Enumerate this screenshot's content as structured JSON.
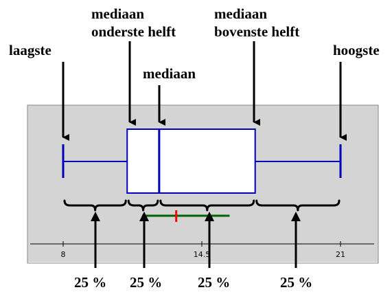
{
  "labels": {
    "lowest": "laagste",
    "median_lower_line1": "mediaan",
    "median_lower_line2": "onderste helft",
    "median": "mediaan",
    "median_upper_line1": "mediaan",
    "median_upper_line2": "bovenste helft",
    "highest": "hoogste"
  },
  "percent_labels": [
    "25 %",
    "25 %",
    "25 %",
    "25 %"
  ],
  "axis": {
    "min": 8,
    "max": 21,
    "ticks": [
      {
        "value": 8,
        "label": "8"
      },
      {
        "value": 14.5,
        "label": "14.5"
      },
      {
        "value": 21,
        "label": "21"
      }
    ]
  },
  "boxplot": {
    "min": 8,
    "q1": 11,
    "median": 12.5,
    "q3": 17,
    "max": 21
  },
  "mean_interval": {
    "low": 11.7,
    "mean": 13.3,
    "high": 15.8
  },
  "colors": {
    "panel": "#d4d4d4",
    "box": "#0000b8",
    "interval": "#006400",
    "mean_mark": "#ff0000"
  }
}
